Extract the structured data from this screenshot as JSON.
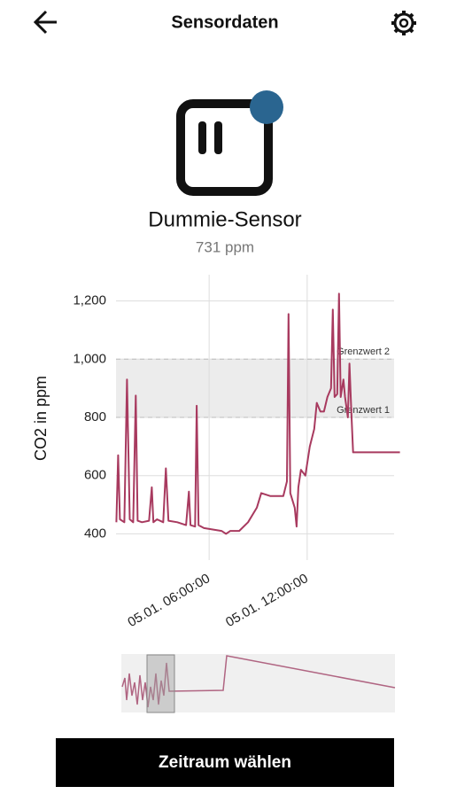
{
  "header": {
    "title": "Sensordaten"
  },
  "sensor": {
    "name": "Dummie-Sensor",
    "reading": "731 ppm"
  },
  "chart_data": {
    "type": "line",
    "y_label": "CO2 in ppm",
    "x": [
      0.32,
      0.43,
      0.54,
      0.81,
      0.97,
      1.14,
      1.35,
      1.51,
      1.62,
      1.89,
      2.32,
      2.49,
      2.59,
      2.81,
      3.19,
      3.35,
      3.51,
      4.05,
      4.59,
      4.76,
      4.86,
      5.14,
      5.24,
      5.35,
      5.68,
      6.22,
      6.76,
      7.03,
      7.3,
      7.84,
      8.38,
      8.92,
      9.19,
      9.73,
      10.54,
      10.76,
      10.86,
      10.97,
      11.24,
      11.35,
      11.46,
      11.62,
      11.89,
      12.16,
      12.43,
      12.59,
      12.81,
      13.03,
      13.24,
      13.46,
      13.57,
      13.68,
      13.84,
      13.95,
      14.05,
      14.22,
      14.32,
      14.49,
      14.59,
      14.7,
      14.81,
      15.95,
      17.68
    ],
    "series": [
      {
        "color": "#a83a5f",
        "values": [
          440,
          670,
          450,
          440,
          930,
          450,
          440,
          875,
          445,
          440,
          445,
          560,
          440,
          450,
          440,
          625,
          445,
          440,
          430,
          545,
          430,
          425,
          840,
          430,
          420,
          415,
          410,
          400,
          410,
          410,
          440,
          490,
          540,
          530,
          530,
          580,
          1155,
          540,
          490,
          425,
          560,
          620,
          600,
          700,
          760,
          850,
          820,
          820,
          870,
          900,
          1170,
          870,
          880,
          1225,
          870,
          930,
          870,
          800,
          985,
          820,
          680,
          680,
          680
        ]
      }
    ],
    "xlim": [
      0.3,
      17.7
    ],
    "ylim": [
      310,
      1290
    ],
    "xticks": [
      {
        "value": 6,
        "label": "05.01. 06:00:00"
      },
      {
        "value": 12,
        "label": "05.01. 12:00:00"
      }
    ],
    "yticks": [
      400,
      600,
      800,
      {
        "value": 1000,
        "label": "1,000"
      },
      {
        "value": 1200,
        "label": "1,200"
      }
    ],
    "grid": true,
    "thresholds": [
      {
        "value": 800,
        "label": "Grenzwert 1"
      },
      {
        "value": 1000,
        "label": "Grenzwert 2"
      }
    ]
  },
  "button": {
    "label": "Zeitraum wählen"
  }
}
